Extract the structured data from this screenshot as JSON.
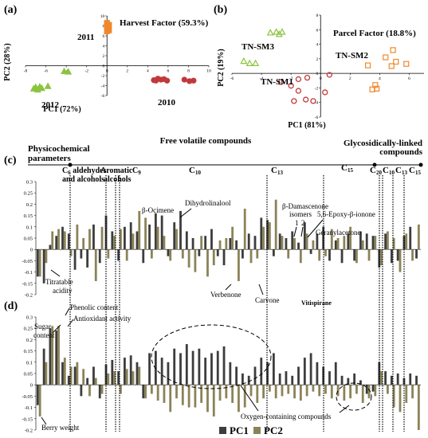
{
  "panels": {
    "a": {
      "label": "(a)",
      "title": "Harvest Factor (59.3%)",
      "xlabel": "PC1 (72%)",
      "ylabel": "PC2 (28%)",
      "xticks": [
        "-8",
        "-6",
        "-4",
        "-2",
        "0",
        "2",
        "4",
        "6",
        "8",
        "10"
      ],
      "yticks": [
        "10",
        "8",
        "6",
        "4",
        "2",
        "0",
        "-2",
        "-4",
        "-6"
      ],
      "groups": [
        {
          "label": "2011",
          "color": "#f0882a",
          "marker": "square"
        },
        {
          "label": "2012",
          "color": "#8bc43f",
          "marker": "triangle"
        },
        {
          "label": "2010",
          "color": "#c0393b",
          "marker": "circle"
        }
      ]
    },
    "b": {
      "label": "(b)",
      "title": "Parcel Factor (18.8%)",
      "xlabel": "PC1 (81%)",
      "ylabel": "PC2 (19%)",
      "xticks": [
        "-6",
        "-4",
        "-2",
        "0",
        "2",
        "4",
        "6"
      ],
      "yticks": [
        "8",
        "6",
        "4",
        "2",
        "0",
        "-2",
        "-4",
        "-6"
      ],
      "groups": [
        {
          "label": "TN-SM3",
          "color": "#8bc43f",
          "marker": "triangle"
        },
        {
          "label": "TN-SM2",
          "color": "#f0882a",
          "marker": "square"
        },
        {
          "label": "TN-SM1",
          "color": "#c0393b",
          "marker": "circle"
        }
      ]
    },
    "c": {
      "label": "(c)",
      "yticks": [
        "0.3",
        "0.25",
        "0.2",
        "0.15",
        "0.1",
        "0.05",
        "0",
        "-0.05",
        "-0.1",
        "-0.15",
        "-0.2"
      ]
    },
    "d": {
      "label": "(d)",
      "yticks": [
        "0.3",
        "0.25",
        "0.2",
        "0.15",
        "0.1",
        "0.05",
        "0",
        "-0.05",
        "-0.1",
        "-0.15",
        "-0.2"
      ]
    }
  },
  "header": {
    "physico": "Physicochemical",
    "physico2": "parameters",
    "free": "Free volatile compounds",
    "glyco": "Glycosidically-linked",
    "glyco2": "compounds",
    "classes": [
      {
        "t": "C",
        "sub": "6",
        "extra": " aldehydes"
      },
      {
        "t": "and alcohols",
        "sub": "",
        "extra": ""
      },
      {
        "t": "Aromatic",
        "sub": "",
        "extra": ""
      },
      {
        "t": "alcohols",
        "sub": "",
        "extra": ""
      },
      {
        "t": "C",
        "sub": "9",
        "extra": ""
      },
      {
        "t": "C",
        "sub": "10",
        "extra": ""
      },
      {
        "t": "C",
        "sub": "13",
        "extra": ""
      },
      {
        "t": "C",
        "sub": "15",
        "extra": ""
      },
      {
        "t": "C",
        "sub": "20",
        "extra": ""
      },
      {
        "t": "C",
        "sub": "10",
        "extra": ""
      },
      {
        "t": "C",
        "sub": "13",
        "extra": ""
      },
      {
        "t": "C",
        "sub": "15",
        "extra": ""
      }
    ]
  },
  "annotations_c": [
    "Titratable",
    "acidity",
    "β-Ocimene",
    "Dihydrolinalool",
    "β-Damascenone",
    "isomers",
    "1",
    "2",
    "5,6-Epoxy-β-ionone",
    "Geranylacetone",
    "Verbenone",
    "Carvone",
    "Vitispirane"
  ],
  "annotations_d": [
    "Phenolic content",
    "Antioxidant activity",
    "Sugar",
    "content",
    "Berry weight",
    "Oxygen-containing compounds"
  ],
  "legend": {
    "pc1": "PC1",
    "pc2": "PC2",
    "pc1_color": "#3d3d3d",
    "pc2_color": "#8b8358"
  },
  "chart_data": [
    {
      "type": "scatter",
      "title": "Harvest Factor (59.3%)",
      "xlabel": "PC1 (72%)",
      "ylabel": "PC2 (28%)",
      "xlim": [
        -8,
        10
      ],
      "ylim": [
        -6,
        10
      ],
      "series": [
        {
          "name": "2011",
          "points": [
            [
              0,
              8.6
            ],
            [
              0,
              8.4
            ],
            [
              0.2,
              8.2
            ],
            [
              0,
              7.8
            ],
            [
              0.1,
              7.4
            ],
            [
              0.2,
              7.1
            ],
            [
              0,
              6.9
            ]
          ]
        },
        {
          "name": "2012",
          "points": [
            [
              -7.2,
              -4.6
            ],
            [
              -7,
              -4.3
            ],
            [
              -6.6,
              -4.2
            ],
            [
              -6.8,
              -4.8
            ],
            [
              -6.4,
              -4.5
            ],
            [
              -5.8,
              -4.1
            ],
            [
              -4.2,
              -1.1
            ],
            [
              -3.8,
              -1.2
            ]
          ]
        },
        {
          "name": "2010",
          "points": [
            [
              5,
              -2.6
            ],
            [
              5.3,
              -2.8
            ],
            [
              5.6,
              -2.7
            ],
            [
              4.8,
              -3
            ],
            [
              5.9,
              -3
            ],
            [
              7.6,
              -2.8
            ],
            [
              8.1,
              -3.1
            ],
            [
              8.5,
              -3
            ],
            [
              4.6,
              -2.9
            ]
          ]
        }
      ]
    },
    {
      "type": "scatter",
      "title": "Parcel Factor (18.8%)",
      "xlabel": "PC1 (81%)",
      "ylabel": "PC2 (19%)",
      "xlim": [
        -6,
        7
      ],
      "ylim": [
        -6,
        8
      ],
      "series": [
        {
          "name": "TN-SM3",
          "points": [
            [
              -3.4,
              5.6
            ],
            [
              -3,
              5.7
            ],
            [
              -2.6,
              5.7
            ],
            [
              -2.8,
              5.4
            ],
            [
              -5.2,
              1.7
            ],
            [
              -4.8,
              1.4
            ],
            [
              -4.4,
              1.4
            ]
          ]
        },
        {
          "name": "TN-SM2",
          "points": [
            [
              3.2,
              1.1
            ],
            [
              4.4,
              2.2
            ],
            [
              4.9,
              3.2
            ],
            [
              5.1,
              1.6
            ],
            [
              5.8,
              1.3
            ],
            [
              4.8,
              1
            ],
            [
              3.7,
              -1.6
            ],
            [
              3.5,
              -2.2
            ],
            [
              3.8,
              -2.1
            ]
          ]
        },
        {
          "name": "TN-SM1",
          "points": [
            [
              -1.5,
              -0.8
            ],
            [
              -0.9,
              -0.6
            ],
            [
              0.6,
              -0.2
            ],
            [
              -2.7,
              -1.2
            ],
            [
              -2,
              -1.7
            ],
            [
              -1.5,
              -2.4
            ],
            [
              -1,
              -3.6
            ],
            [
              -1.8,
              -3.8
            ],
            [
              -0.5,
              -3.8
            ],
            [
              0.3,
              -2.6
            ]
          ]
        }
      ]
    },
    {
      "type": "bar",
      "title": "",
      "ylim": [
        -0.2,
        0.3
      ],
      "series": [
        {
          "name": "PC1",
          "values": [
            -0.12,
            -0.15,
            0.02,
            0.06,
            0.1,
            0.07,
            -0.09,
            -0.04,
            -0.08,
            0.11,
            -0.06,
            0.15,
            0.08,
            -0.05,
            0.1,
            0.12,
            0.08,
            -0.06,
            0.11,
            0.16,
            0.15,
            -0.03,
            0.12,
            0.17,
            0.08,
            0.05,
            -0.03,
            0.06,
            0.09,
            -0.03,
            -0.07,
            0.05,
            0.04,
            -0.04,
            0.07,
            0.06,
            0.14,
            0.13,
            -0.03,
            0.07,
            0.05,
            0.08,
            0.03,
            0.12,
            -0.02,
            0.07,
            0.1,
            -0.05,
            0.04,
            -0.06,
            0.07,
            -0.05,
            0.08,
            0.07,
            0.06,
            -0.08,
            0.07,
            -0.06,
            -0.05,
            0.06,
            0.1,
            -0.04
          ]
        },
        {
          "name": "PC2",
          "values": [
            -0.12,
            -0.06,
            0.08,
            0.09,
            0.08,
            -0.03,
            0.11,
            0.05,
            0.09,
            -0.14,
            0.1,
            -0.04,
            0.06,
            0.09,
            -0.05,
            0.07,
            0.17,
            0.14,
            -0.04,
            0.1,
            0.06,
            -0.05,
            0.09,
            -0.04,
            -0.08,
            -0.1,
            0.06,
            -0.12,
            -0.07,
            0.04,
            0.05,
            0.1,
            -0.14,
            0.18,
            -0.06,
            -0.04,
            0.1,
            0.12,
            0.22,
            0.06,
            -0.04,
            0.05,
            -0.06,
            0.07,
            0.04,
            -0.05,
            -0.03,
            0.09,
            0.05,
            0.06,
            0.1,
            -0.06,
            0.04,
            -0.05,
            0.06,
            -0.07,
            0.08,
            0.05,
            -0.1,
            0.07,
            -0.05,
            0.11
          ]
        }
      ]
    },
    {
      "type": "bar",
      "title": "",
      "ylim": [
        -0.2,
        0.3
      ],
      "series": [
        {
          "name": "PC1",
          "values": [
            -0.09,
            0.16,
            0.25,
            0.24,
            0.1,
            0.04,
            0.08,
            -0.05,
            0.03,
            0.08,
            -0.06,
            0.09,
            0.11,
            0.06,
            0.12,
            0.13,
            0.1,
            -0.06,
            0.14,
            0.15,
            0.12,
            0.1,
            0.16,
            0.14,
            0.18,
            0.15,
            0.16,
            0.12,
            0.14,
            0.15,
            0.17,
            0.1,
            0.08,
            0.05,
            0.04,
            0.08,
            0.12,
            0.1,
            0.14,
            0.05,
            0.06,
            0.04,
            0.08,
            0.12,
            0.14,
            0.1,
            0.08,
            0.06,
            0.1,
            0.04,
            0.03,
            0.05,
            0.02,
            -0.04,
            -0.03,
            0.1,
            0.06,
            0.04,
            0.05,
            0.03,
            0.05,
            0.04
          ]
        },
        {
          "name": "PC2",
          "values": [
            -0.14,
            0.1,
            0.26,
            0.26,
            0.12,
            0.08,
            0.1,
            0.07,
            -0.05,
            0.03,
            -0.04,
            0.05,
            0.06,
            -0.04,
            0.07,
            0.06,
            0.08,
            -0.06,
            -0.04,
            -0.07,
            -0.08,
            -0.12,
            -0.06,
            -0.09,
            -0.1,
            -0.1,
            -0.08,
            -0.12,
            -0.14,
            -0.07,
            -0.06,
            -0.08,
            -0.12,
            -0.1,
            -0.05,
            -0.08,
            -0.06,
            -0.03,
            -0.06,
            -0.05,
            -0.04,
            -0.06,
            -0.07,
            -0.05,
            -0.03,
            -0.05,
            -0.04,
            -0.06,
            -0.05,
            -0.07,
            -0.06,
            -0.04,
            -0.08,
            -0.06,
            -0.05,
            0.06,
            -0.04,
            -0.1,
            -0.12,
            -0.08,
            -0.06,
            -0.2
          ]
        }
      ]
    }
  ]
}
